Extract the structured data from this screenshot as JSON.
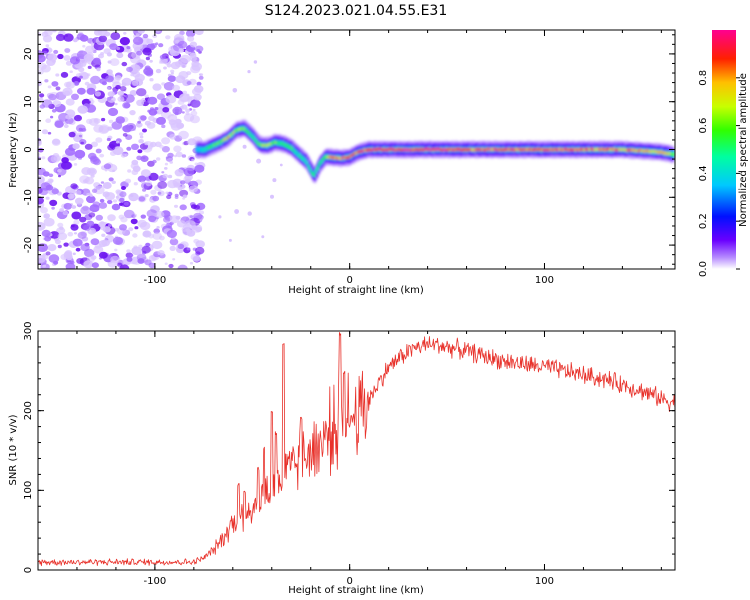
{
  "chart_data": [
    {
      "type": "heatmap",
      "title": "S124.2023.021.04.55.E31",
      "xlabel": "Height of straight line (km)",
      "ylabel": "Frequency (Hz)",
      "xlim": [
        -160,
        167
      ],
      "ylim": [
        -25,
        25
      ],
      "x_ticks": [
        -100,
        0,
        100
      ],
      "y_ticks": [
        -20,
        -10,
        0,
        10,
        20
      ],
      "noise_region_x": [
        -160,
        -78
      ],
      "ridge": {
        "x": [
          -78,
          -74,
          -70,
          -66,
          -62,
          -58,
          -54,
          -50,
          -46,
          -42,
          -38,
          -34,
          -30,
          -26,
          -22,
          -18,
          -15,
          -12,
          -8,
          -4,
          0,
          5,
          10,
          20,
          40,
          60,
          80,
          100,
          120,
          140,
          160,
          166
        ],
        "frequency": [
          0,
          0,
          0.8,
          1.5,
          2.5,
          4.0,
          4.5,
          3.0,
          1.0,
          0.8,
          1.5,
          1.2,
          0.5,
          -1.0,
          -2.5,
          -5.5,
          -3.0,
          -1.5,
          -1.7,
          -1.8,
          -1.6,
          -0.5,
          0,
          0,
          0,
          0,
          0,
          0,
          0,
          0,
          -0.5,
          -1.0
        ],
        "amplitude": [
          0.35,
          0.45,
          0.55,
          0.65,
          0.75,
          0.7,
          0.6,
          0.55,
          0.6,
          0.75,
          0.6,
          0.5,
          0.55,
          0.5,
          0.45,
          0.5,
          0.55,
          0.6,
          0.85,
          0.9,
          0.9,
          0.9,
          0.95,
          0.95,
          0.95,
          0.9,
          0.9,
          0.9,
          0.85,
          0.85,
          0.8,
          0.6
        ]
      },
      "colorbar": {
        "label": "Normalized spectral amplitude",
        "ticks": [
          "0.0",
          "0.2",
          "0.4",
          "0.6",
          "0.8"
        ],
        "range": [
          0,
          1
        ]
      }
    },
    {
      "type": "line",
      "xlabel": "Height of straight line (km)",
      "ylabel": "SNR (10 * v/v)",
      "xlim": [
        -160,
        167
      ],
      "ylim": [
        0,
        300
      ],
      "x_ticks": [
        -100,
        0,
        100
      ],
      "y_ticks": [
        0,
        100,
        200,
        300
      ],
      "series": [
        {
          "name": "SNR",
          "color": "#e8322b",
          "x": [
            -160,
            -140,
            -120,
            -100,
            -90,
            -80,
            -75,
            -70,
            -65,
            -60,
            -55,
            -50,
            -45,
            -40,
            -35,
            -30,
            -25,
            -20,
            -15,
            -10,
            -5,
            0,
            5,
            10,
            15,
            20,
            25,
            30,
            35,
            40,
            45,
            50,
            60,
            70,
            80,
            90,
            100,
            110,
            120,
            130,
            140,
            150,
            160,
            167
          ],
          "values": [
            10,
            10,
            10,
            10,
            10,
            10,
            15,
            25,
            40,
            60,
            70,
            80,
            90,
            105,
            115,
            125,
            140,
            150,
            160,
            175,
            185,
            190,
            200,
            215,
            235,
            255,
            265,
            275,
            280,
            283,
            283,
            280,
            275,
            268,
            262,
            258,
            255,
            250,
            245,
            240,
            233,
            225,
            215,
            210
          ],
          "spikes": [
            {
              "x": -57,
              "value": 110
            },
            {
              "x": -54,
              "value": 100
            },
            {
              "x": -47,
              "value": 130
            },
            {
              "x": -44,
              "value": 155
            },
            {
              "x": -40,
              "value": 200
            },
            {
              "x": -38,
              "value": 175
            },
            {
              "x": -34,
              "value": 285
            },
            {
              "x": -25,
              "value": 195
            },
            {
              "x": -5,
              "value": 300
            },
            {
              "x": -3,
              "value": 250
            },
            {
              "x": 0,
              "value": 185
            }
          ]
        }
      ]
    }
  ]
}
